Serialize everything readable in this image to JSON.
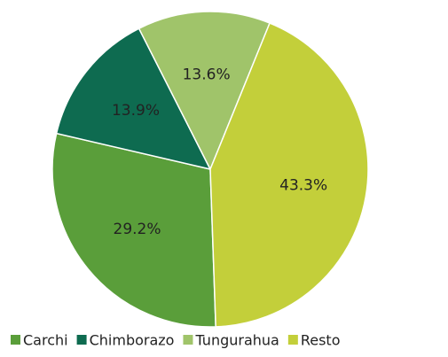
{
  "chart_data": {
    "type": "pie",
    "categories": [
      "Carchi",
      "Chimborazo",
      "Tungurahua",
      "Resto"
    ],
    "values": [
      29.2,
      13.9,
      13.6,
      43.3
    ],
    "value_labels": [
      "29.2%",
      "13.9%",
      "13.6%",
      "43.3%"
    ],
    "colors": [
      "#5a9e3a",
      "#0e6b50",
      "#a0c46a",
      "#c3cf3a"
    ],
    "legend": "bottom"
  }
}
